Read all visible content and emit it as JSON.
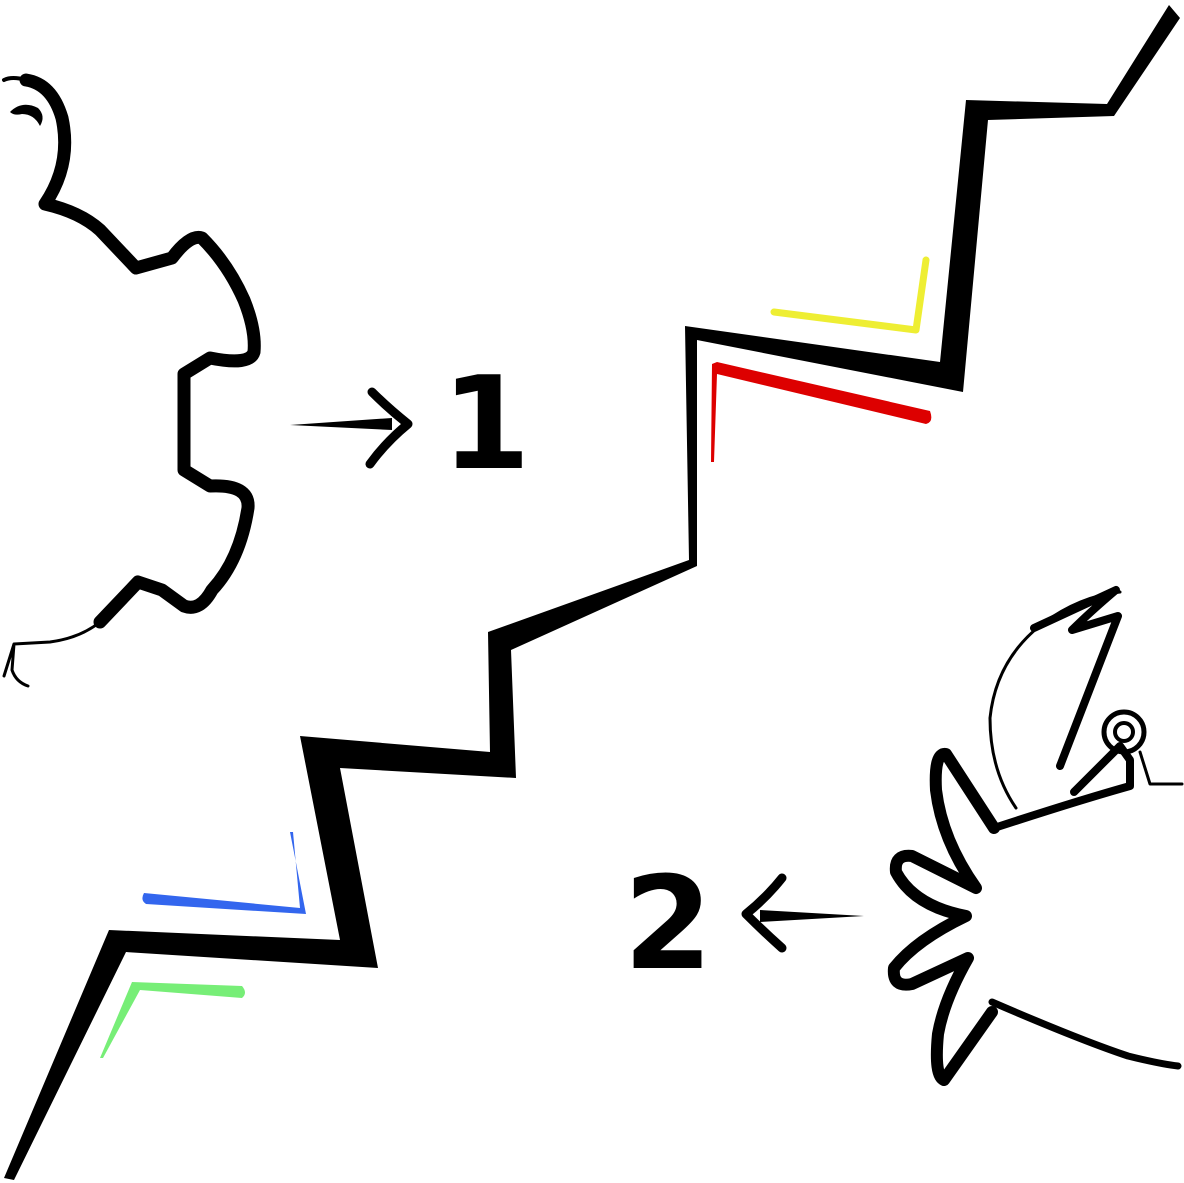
{
  "labels": {
    "one": "1",
    "two": "2"
  },
  "colors": {
    "ink": "#000000",
    "background": "#ffffff",
    "mark_yellow": "#eeee33",
    "mark_red": "#dd0000",
    "mark_blue": "#3366ee",
    "mark_green": "#77ee77"
  },
  "icons": {
    "arrow_to_one": "arrow-right-icon",
    "arrow_to_two": "arrow-left-icon"
  }
}
